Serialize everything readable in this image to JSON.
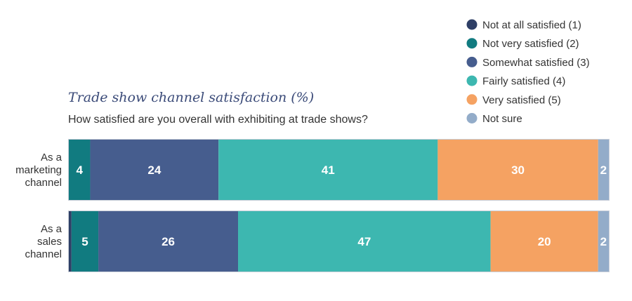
{
  "chart_data": {
    "type": "bar",
    "orientation": "horizontal",
    "stacked": true,
    "title": "Trade show channel satisfaction (%)",
    "subtitle": "How satisfied are you overall with exhibiting at trade shows?",
    "categories": [
      [
        "As a",
        "marketing",
        "channel"
      ],
      [
        "As a",
        "sales",
        "channel"
      ]
    ],
    "series": [
      {
        "name": "Not at all satisfied (1)",
        "color": "#2e3f66",
        "values": [
          0,
          0.5
        ],
        "labels": [
          "",
          ""
        ]
      },
      {
        "name": "Not very satisfied (2)",
        "color": "#117b80",
        "values": [
          4,
          5
        ],
        "labels": [
          "4",
          "5"
        ]
      },
      {
        "name": "Somewhat satisfied (3)",
        "color": "#465d8e",
        "values": [
          24,
          26
        ],
        "labels": [
          "24",
          "26"
        ]
      },
      {
        "name": "Fairly satisfied (4)",
        "color": "#3db7b0",
        "values": [
          41,
          47
        ],
        "labels": [
          "41",
          "47"
        ]
      },
      {
        "name": "Very satisfied (5)",
        "color": "#f5a262",
        "values": [
          30,
          20
        ],
        "labels": [
          "30",
          "20"
        ]
      },
      {
        "name": "Not sure",
        "color": "#93acc9",
        "values": [
          2,
          2
        ],
        "labels": [
          "2",
          "2"
        ]
      }
    ],
    "legend_position": "top-right",
    "grid": false
  }
}
